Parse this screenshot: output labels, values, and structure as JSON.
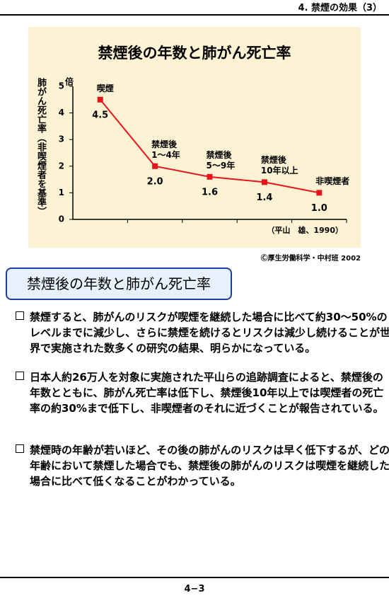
{
  "header": {
    "title": "4. 禁煙の効果（3）"
  },
  "chart_data": {
    "type": "line",
    "title": "禁煙後の年数と肺がん死亡率",
    "y_label": "肺がん死亡率（非喫煙者を基準）",
    "y_unit": "倍",
    "categories": [
      "喫煙",
      "禁煙後\n1〜4年",
      "禁煙後\n5〜9年",
      "禁煙後\n10年以上",
      "非喫煙者"
    ],
    "values": [
      4.5,
      2.0,
      1.6,
      1.4,
      1.0
    ],
    "value_labels": [
      "4.5",
      "2.0",
      "1.6",
      "1.4",
      "1.0"
    ],
    "color": "#e8141c",
    "ylim": [
      0,
      5
    ],
    "yticks": [
      0,
      1,
      2,
      3,
      4,
      5
    ],
    "note": "（平山　雄、1990）"
  },
  "credit": "Ⓒ厚生労働科学・中村班 2002",
  "heading": "禁煙後の年数と肺がん死亡率",
  "paragraphs": [
    "禁煙すると、肺がんのリスクが喫煙を継続した場合に比べて約30〜50%のレベルまでに減少し、さらに禁煙を続けるとリスクは減少し続けることが世界で実施された数多くの研究の結果、明らかになっている。",
    "日本人約26万人を対象に実施された平山らの追跡調査によると、禁煙後の年数とともに、肺がん死亡率は低下し、禁煙後10年以上では喫煙者の死亡率の約30%まで低下し、非喫煙者のそれに近づくことが報告されている。",
    "禁煙時の年齢が若いほど、その後の肺がんのリスクは早く低下するが、どの年齢において禁煙した場合でも、禁煙後の肺がんのリスクは喫煙を継続した場合に比べて低くなることがわかっている。"
  ],
  "footer": {
    "page": "4−3"
  }
}
